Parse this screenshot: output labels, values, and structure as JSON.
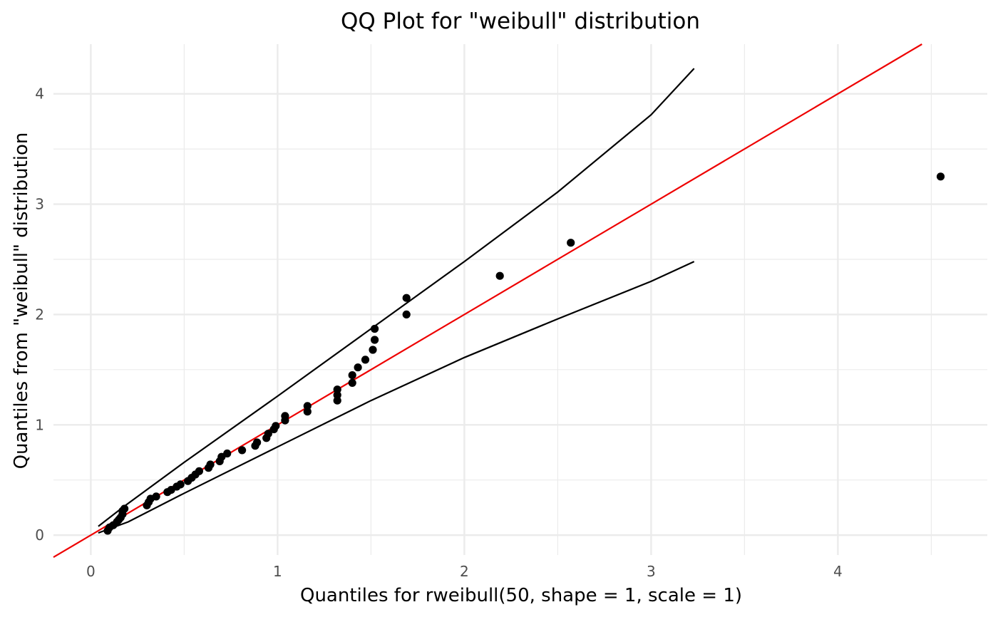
{
  "chart_data": {
    "type": "scatter",
    "title": "QQ Plot for \"weibull\" distribution",
    "xlabel": "Quantiles for rweibull(50, shape = 1, scale = 1)",
    "ylabel": "Quantiles from \"weibull\" distribution",
    "xlim": [
      -0.2,
      4.8
    ],
    "ylim": [
      -0.18,
      4.45
    ],
    "x_ticks": [
      0,
      1,
      2,
      3,
      4
    ],
    "x_tick_labels": [
      "0",
      "1",
      "2",
      "3",
      "4"
    ],
    "y_ticks": [
      0,
      1,
      2,
      3,
      4
    ],
    "y_tick_labels": [
      "0",
      "1",
      "2",
      "3",
      "4"
    ],
    "grid": true,
    "colors": {
      "points": "#000000",
      "reference_line": "#ee0000",
      "bands": "#000000",
      "grid": "#ebebeb"
    },
    "points": [
      [
        0.09,
        0.04
      ],
      [
        0.1,
        0.07
      ],
      [
        0.12,
        0.09
      ],
      [
        0.14,
        0.12
      ],
      [
        0.15,
        0.14
      ],
      [
        0.16,
        0.16
      ],
      [
        0.17,
        0.19
      ],
      [
        0.17,
        0.22
      ],
      [
        0.18,
        0.24
      ],
      [
        0.3,
        0.27
      ],
      [
        0.31,
        0.3
      ],
      [
        0.32,
        0.33
      ],
      [
        0.35,
        0.35
      ],
      [
        0.41,
        0.39
      ],
      [
        0.43,
        0.41
      ],
      [
        0.46,
        0.44
      ],
      [
        0.48,
        0.46
      ],
      [
        0.52,
        0.49
      ],
      [
        0.54,
        0.52
      ],
      [
        0.56,
        0.55
      ],
      [
        0.58,
        0.58
      ],
      [
        0.63,
        0.61
      ],
      [
        0.64,
        0.64
      ],
      [
        0.69,
        0.67
      ],
      [
        0.7,
        0.71
      ],
      [
        0.73,
        0.74
      ],
      [
        0.81,
        0.77
      ],
      [
        0.88,
        0.81
      ],
      [
        0.89,
        0.84
      ],
      [
        0.94,
        0.88
      ],
      [
        0.95,
        0.92
      ],
      [
        0.98,
        0.96
      ],
      [
        0.99,
        0.99
      ],
      [
        1.04,
        1.04
      ],
      [
        1.04,
        1.08
      ],
      [
        1.16,
        1.12
      ],
      [
        1.16,
        1.17
      ],
      [
        1.32,
        1.22
      ],
      [
        1.32,
        1.27
      ],
      [
        1.32,
        1.32
      ],
      [
        1.4,
        1.38
      ],
      [
        1.4,
        1.45
      ],
      [
        1.43,
        1.52
      ],
      [
        1.47,
        1.59
      ],
      [
        1.51,
        1.68
      ],
      [
        1.52,
        1.77
      ],
      [
        1.52,
        1.87
      ],
      [
        1.69,
        2.0
      ],
      [
        1.69,
        2.15
      ],
      [
        2.19,
        2.35
      ],
      [
        2.57,
        2.65
      ],
      [
        4.55,
        3.25
      ]
    ],
    "reference_line": {
      "intercept": 0,
      "slope": 1
    },
    "upper_band": [
      [
        0.04,
        0.08
      ],
      [
        0.17,
        0.25
      ],
      [
        0.5,
        0.66
      ],
      [
        1.0,
        1.26
      ],
      [
        1.5,
        1.87
      ],
      [
        2.0,
        2.48
      ],
      [
        2.5,
        3.11
      ],
      [
        3.0,
        3.81
      ],
      [
        3.23,
        4.23
      ]
    ],
    "lower_band": [
      [
        0.04,
        0.02
      ],
      [
        0.2,
        0.12
      ],
      [
        0.5,
        0.38
      ],
      [
        1.0,
        0.8
      ],
      [
        1.5,
        1.22
      ],
      [
        2.0,
        1.61
      ],
      [
        2.5,
        1.96
      ],
      [
        3.0,
        2.3
      ],
      [
        3.23,
        2.48
      ]
    ]
  }
}
